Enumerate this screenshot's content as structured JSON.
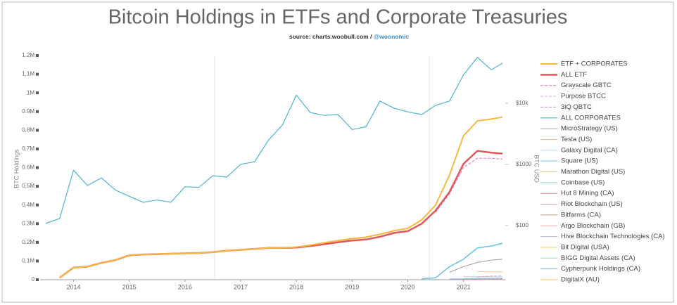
{
  "chart_data": {
    "type": "line",
    "title": "Bitcoin Holdings in ETFs and Corporate Treasuries",
    "subtitle": "source: charts.woobull.com /",
    "subtitle_link": "@woonomic",
    "ylabel": "BTC Holdings",
    "y2label": "BTC USD",
    "x": [
      2013.5,
      2013.75,
      2014,
      2014.25,
      2014.5,
      2014.75,
      2015,
      2015.25,
      2015.5,
      2015.75,
      2016,
      2016.25,
      2016.5,
      2016.75,
      2017,
      2017.25,
      2017.5,
      2017.75,
      2018,
      2018.25,
      2018.5,
      2018.75,
      2019,
      2019.25,
      2019.5,
      2019.75,
      2020,
      2020.25,
      2020.5,
      2020.75,
      2021,
      2021.25,
      2021.5,
      2021.7
    ],
    "xlim": [
      2013.4,
      2021.75
    ],
    "xticks": [
      2014,
      2015,
      2016,
      2017,
      2018,
      2019,
      2020,
      2021
    ],
    "ylim": [
      0,
      1200000
    ],
    "yticks": [
      0,
      {
        "value": 100000,
        "label": "0.1M"
      },
      {
        "value": 200000,
        "label": "0.2M"
      },
      {
        "value": 300000,
        "label": "0.3M"
      },
      {
        "value": 400000,
        "label": "0.4M"
      },
      {
        "value": 500000,
        "label": "0.5M"
      },
      {
        "value": 600000,
        "label": "0.6M"
      },
      {
        "value": 700000,
        "label": "0.7M"
      },
      {
        "value": 800000,
        "label": "0.8M"
      },
      {
        "value": 900000,
        "label": "0.9M"
      },
      {
        "value": 1000000,
        "label": "1M"
      },
      {
        "value": 1100000,
        "label": "1.1M"
      },
      {
        "value": 1200000,
        "label": "1.2M"
      }
    ],
    "y2lim": [
      13,
      60000
    ],
    "y2log": true,
    "y2ticks": [
      {
        "value": 100,
        "label": "$100"
      },
      {
        "value": 1000,
        "label": "$1000"
      },
      {
        "value": 10000,
        "label": "$10k"
      }
    ],
    "price": {
      "axis": "y2",
      "color": "#4fb3d3",
      "values": [
        108,
        130,
        800,
        450,
        600,
        380,
        300,
        240,
        260,
        240,
        430,
        420,
        650,
        620,
        1000,
        1100,
        2500,
        4400,
        13500,
        7000,
        6300,
        6500,
        3700,
        4100,
        10800,
        8300,
        7200,
        6500,
        9200,
        10800,
        29000,
        56000,
        35000,
        45000
      ]
    },
    "series": [
      {
        "name": "ETF + CORPORATES",
        "color": "#f5b942",
        "values": [
          null,
          10000,
          65000,
          70000,
          90000,
          105000,
          130000,
          135000,
          137000,
          139000,
          141000,
          143000,
          148000,
          155000,
          160000,
          165000,
          170000,
          170000,
          175000,
          185000,
          198000,
          210000,
          220000,
          228000,
          243000,
          262000,
          275000,
          320000,
          400000,
          560000,
          770000,
          850000,
          860000,
          870000
        ]
      },
      {
        "name": "ALL ETF",
        "color": "#e0585b",
        "values": [
          null,
          10000,
          65000,
          70000,
          90000,
          105000,
          130000,
          135000,
          137000,
          139000,
          141000,
          143000,
          148000,
          155000,
          160000,
          165000,
          170000,
          170000,
          172000,
          180000,
          190000,
          200000,
          210000,
          215000,
          230000,
          250000,
          260000,
          300000,
          370000,
          470000,
          620000,
          690000,
          680000,
          675000
        ]
      },
      {
        "name": "Grayscale GBTC",
        "color": "#e07ac0",
        "dash": true,
        "values": [
          null,
          null,
          null,
          null,
          null,
          null,
          null,
          null,
          null,
          null,
          null,
          null,
          null,
          null,
          null,
          null,
          null,
          null,
          null,
          null,
          null,
          null,
          null,
          null,
          null,
          null,
          null,
          null,
          360000,
          460000,
          600000,
          650000,
          650000,
          645000
        ]
      },
      {
        "name": "Purpose BTCC",
        "color": "#e8a8d4",
        "dash": true,
        "values": [
          null,
          null,
          null,
          null,
          null,
          null,
          null,
          null,
          null,
          null,
          null,
          null,
          null,
          null,
          null,
          null,
          null,
          null,
          null,
          null,
          null,
          null,
          null,
          null,
          null,
          null,
          null,
          null,
          null,
          null,
          null,
          15000,
          20000,
          23000
        ]
      },
      {
        "name": "3iQ QBTC",
        "color": "#b890c8",
        "dash": true,
        "values": [
          null,
          null,
          null,
          null,
          null,
          null,
          null,
          null,
          null,
          null,
          null,
          null,
          null,
          null,
          null,
          null,
          null,
          null,
          null,
          null,
          null,
          null,
          null,
          null,
          null,
          null,
          null,
          null,
          null,
          1000,
          2000,
          3000,
          3500,
          4000
        ]
      },
      {
        "name": "ALL CORPORATES",
        "color": "#6ec6e6",
        "values": [
          null,
          null,
          null,
          null,
          null,
          null,
          null,
          null,
          null,
          null,
          null,
          null,
          null,
          null,
          null,
          null,
          null,
          null,
          null,
          null,
          null,
          null,
          null,
          null,
          null,
          null,
          null,
          5000,
          10000,
          70000,
          110000,
          170000,
          180000,
          195000
        ]
      },
      {
        "name": "MicroStrategy (US)",
        "color": "#a0a0a0",
        "values": [
          null,
          null,
          null,
          null,
          null,
          null,
          null,
          null,
          null,
          null,
          null,
          null,
          null,
          null,
          null,
          null,
          null,
          null,
          null,
          null,
          null,
          null,
          null,
          null,
          null,
          null,
          null,
          null,
          null,
          40000,
          70000,
          92000,
          105000,
          110000
        ]
      },
      {
        "name": "Tesla (US)",
        "color": "#f0c890",
        "values": [
          null,
          null,
          null,
          null,
          null,
          null,
          null,
          null,
          null,
          null,
          null,
          null,
          null,
          null,
          null,
          null,
          null,
          null,
          null,
          null,
          null,
          null,
          null,
          null,
          null,
          null,
          null,
          null,
          null,
          null,
          null,
          43000,
          42000,
          42000
        ]
      },
      {
        "name": "Galaxy Digital (CA)",
        "color": "#b0d8f0",
        "values": [
          null,
          null,
          null,
          null,
          null,
          null,
          null,
          null,
          null,
          null,
          null,
          null,
          null,
          null,
          null,
          null,
          null,
          null,
          null,
          null,
          null,
          null,
          null,
          null,
          null,
          null,
          null,
          null,
          null,
          null,
          16000,
          16000,
          16000,
          16000
        ]
      },
      {
        "name": "Square (US)",
        "color": "#80c8e8",
        "values": [
          null,
          null,
          null,
          null,
          null,
          null,
          null,
          null,
          null,
          null,
          null,
          null,
          null,
          null,
          null,
          null,
          null,
          null,
          null,
          null,
          null,
          null,
          null,
          null,
          null,
          null,
          null,
          null,
          null,
          4700,
          4700,
          8000,
          8000,
          8000
        ]
      },
      {
        "name": "Marathon Digital (US)",
        "color": "#f0c090",
        "values": [
          null,
          null,
          null,
          null,
          null,
          null,
          null,
          null,
          null,
          null,
          null,
          null,
          null,
          null,
          null,
          null,
          null,
          null,
          null,
          null,
          null,
          null,
          null,
          null,
          null,
          null,
          null,
          null,
          null,
          null,
          5000,
          5000,
          5300,
          5800
        ]
      },
      {
        "name": "Coinbase (US)",
        "color": "#90d0d0",
        "values": [
          null,
          null,
          null,
          null,
          null,
          null,
          null,
          null,
          null,
          null,
          null,
          null,
          null,
          null,
          null,
          null,
          null,
          null,
          null,
          null,
          null,
          null,
          null,
          null,
          null,
          null,
          null,
          null,
          null,
          null,
          null,
          4500,
          4500,
          4500
        ]
      },
      {
        "name": "Hut 8 Mining (CA)",
        "color": "#e88080",
        "values": [
          null,
          null,
          null,
          null,
          null,
          null,
          null,
          null,
          null,
          null,
          null,
          null,
          null,
          null,
          null,
          null,
          null,
          null,
          null,
          null,
          null,
          null,
          null,
          null,
          null,
          null,
          null,
          null,
          null,
          null,
          3000,
          4000,
          4500,
          5000
        ]
      },
      {
        "name": "Riot Blockchain (US)",
        "color": "#d0a0a0",
        "values": [
          null,
          null,
          null,
          null,
          null,
          null,
          null,
          null,
          null,
          null,
          null,
          null,
          null,
          null,
          null,
          null,
          null,
          null,
          null,
          null,
          null,
          null,
          null,
          null,
          null,
          null,
          null,
          null,
          null,
          null,
          1000,
          1200,
          1600,
          2000
        ]
      },
      {
        "name": "Bitfarms (CA)",
        "color": "#c8a080",
        "values": [
          null,
          null,
          null,
          null,
          null,
          null,
          null,
          null,
          null,
          null,
          null,
          null,
          null,
          null,
          null,
          null,
          null,
          null,
          null,
          null,
          null,
          null,
          null,
          null,
          null,
          null,
          null,
          null,
          null,
          null,
          1500,
          2000,
          2500,
          3000
        ]
      },
      {
        "name": "Argo Blockchain (GB)",
        "color": "#f0b0b0",
        "values": [
          null,
          null,
          null,
          null,
          null,
          null,
          null,
          null,
          null,
          null,
          null,
          null,
          null,
          null,
          null,
          null,
          null,
          null,
          null,
          null,
          null,
          null,
          null,
          null,
          null,
          null,
          null,
          null,
          null,
          null,
          800,
          1000,
          1300,
          1500
        ]
      },
      {
        "name": "Hive Blockchain Technologies (CA)",
        "color": "#c0b0d0",
        "values": [
          null,
          null,
          null,
          null,
          null,
          null,
          null,
          null,
          null,
          null,
          null,
          null,
          null,
          null,
          null,
          null,
          null,
          null,
          null,
          null,
          null,
          null,
          null,
          null,
          null,
          null,
          null,
          null,
          null,
          null,
          1000,
          1400,
          1800,
          2000
        ]
      },
      {
        "name": "Bit Digital (USA)",
        "color": "#f0d070",
        "values": [
          null,
          null,
          null,
          null,
          null,
          null,
          null,
          null,
          null,
          null,
          null,
          null,
          null,
          null,
          null,
          null,
          null,
          null,
          null,
          null,
          null,
          null,
          null,
          null,
          null,
          null,
          null,
          null,
          null,
          null,
          300,
          500,
          800,
          1000
        ]
      },
      {
        "name": "BIGG Digital Assets (CA)",
        "color": "#a0d8b0",
        "values": [
          null,
          null,
          null,
          null,
          null,
          null,
          null,
          null,
          null,
          null,
          null,
          null,
          null,
          null,
          null,
          null,
          null,
          null,
          null,
          null,
          null,
          null,
          null,
          null,
          null,
          null,
          null,
          null,
          null,
          null,
          300,
          400,
          500,
          500
        ]
      },
      {
        "name": "Cypherpunk Holdings (CA)",
        "color": "#70b8e0",
        "values": [
          null,
          null,
          null,
          null,
          null,
          null,
          null,
          null,
          null,
          null,
          null,
          null,
          null,
          null,
          null,
          null,
          null,
          null,
          null,
          null,
          null,
          null,
          null,
          null,
          null,
          null,
          null,
          null,
          null,
          null,
          300,
          300,
          300,
          300
        ]
      },
      {
        "name": "DigitalX (AU)",
        "color": "#f0c060",
        "values": [
          null,
          null,
          null,
          null,
          null,
          null,
          null,
          null,
          null,
          null,
          null,
          null,
          null,
          null,
          null,
          null,
          null,
          null,
          null,
          null,
          null,
          null,
          null,
          null,
          null,
          null,
          null,
          null,
          null,
          null,
          100,
          150,
          200,
          200
        ]
      }
    ]
  }
}
